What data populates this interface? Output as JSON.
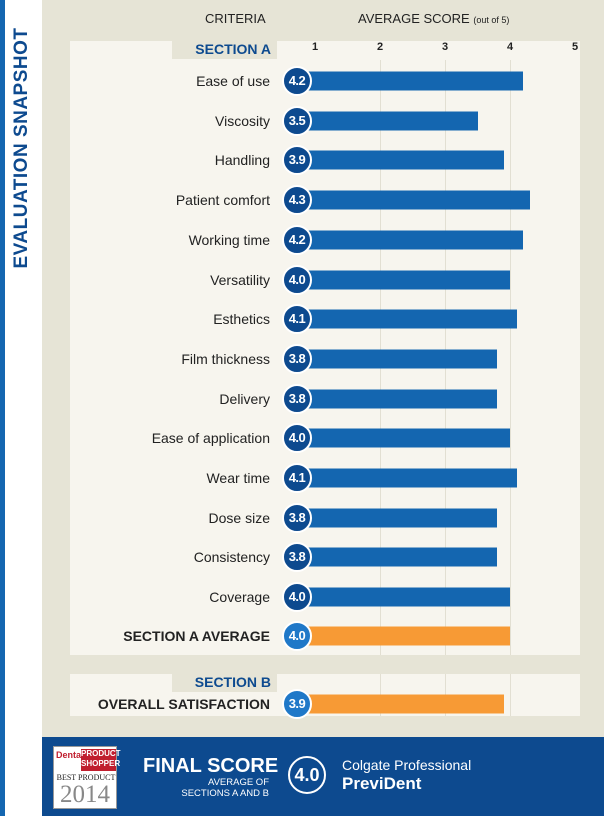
{
  "side_title": "EVALUATION SNAPSHOT",
  "header": {
    "criteria": "CRITERIA",
    "score": "AVERAGE SCORE",
    "score_note": "(out of 5)"
  },
  "colors": {
    "blue": "#0d4a8f",
    "bar_blue": "#1466b0",
    "orange": "#f79a35",
    "badge_light": "#1f78c8"
  },
  "chart_data": {
    "type": "bar",
    "orientation": "horizontal",
    "xlim": [
      1,
      5
    ],
    "ticks": [
      "1",
      "2",
      "3",
      "4",
      "5"
    ],
    "sections": [
      {
        "title": "SECTION A",
        "categories": [
          "Ease of use",
          "Viscosity",
          "Handling",
          "Patient comfort",
          "Working time",
          "Versatility",
          "Esthetics",
          "Film thickness",
          "Delivery",
          "Ease of application",
          "Wear time",
          "Dose size",
          "Consistency",
          "Coverage"
        ],
        "values": [
          4.2,
          3.5,
          3.9,
          4.3,
          4.2,
          4.0,
          4.1,
          3.8,
          3.8,
          4.0,
          4.1,
          3.8,
          3.8,
          4.0
        ],
        "labels": [
          "4.2",
          "3.5",
          "3.9",
          "4.3",
          "4.2",
          "4.0",
          "4.1",
          "3.8",
          "3.8",
          "4.0",
          "4.1",
          "3.8",
          "3.8",
          "4.0"
        ],
        "average": {
          "label": "SECTION A AVERAGE",
          "value": 4.0,
          "display": "4.0"
        }
      },
      {
        "title": "SECTION B",
        "categories": [
          "OVERALL SATISFACTION"
        ],
        "values": [
          3.9
        ],
        "labels": [
          "3.9"
        ]
      }
    ]
  },
  "footer": {
    "logo": {
      "brand": "Dental",
      "product_shopper": "PRODUCT SHOPPER",
      "best": "BEST PRODUCT",
      "year": "2014"
    },
    "final_score_label": "FINAL SCORE",
    "final_score_sub1": "AVERAGE OF",
    "final_score_sub2": "SECTIONS A AND B",
    "final_score": "4.0",
    "product_line1": "Colgate Professional",
    "product_line2": "PreviDent"
  }
}
